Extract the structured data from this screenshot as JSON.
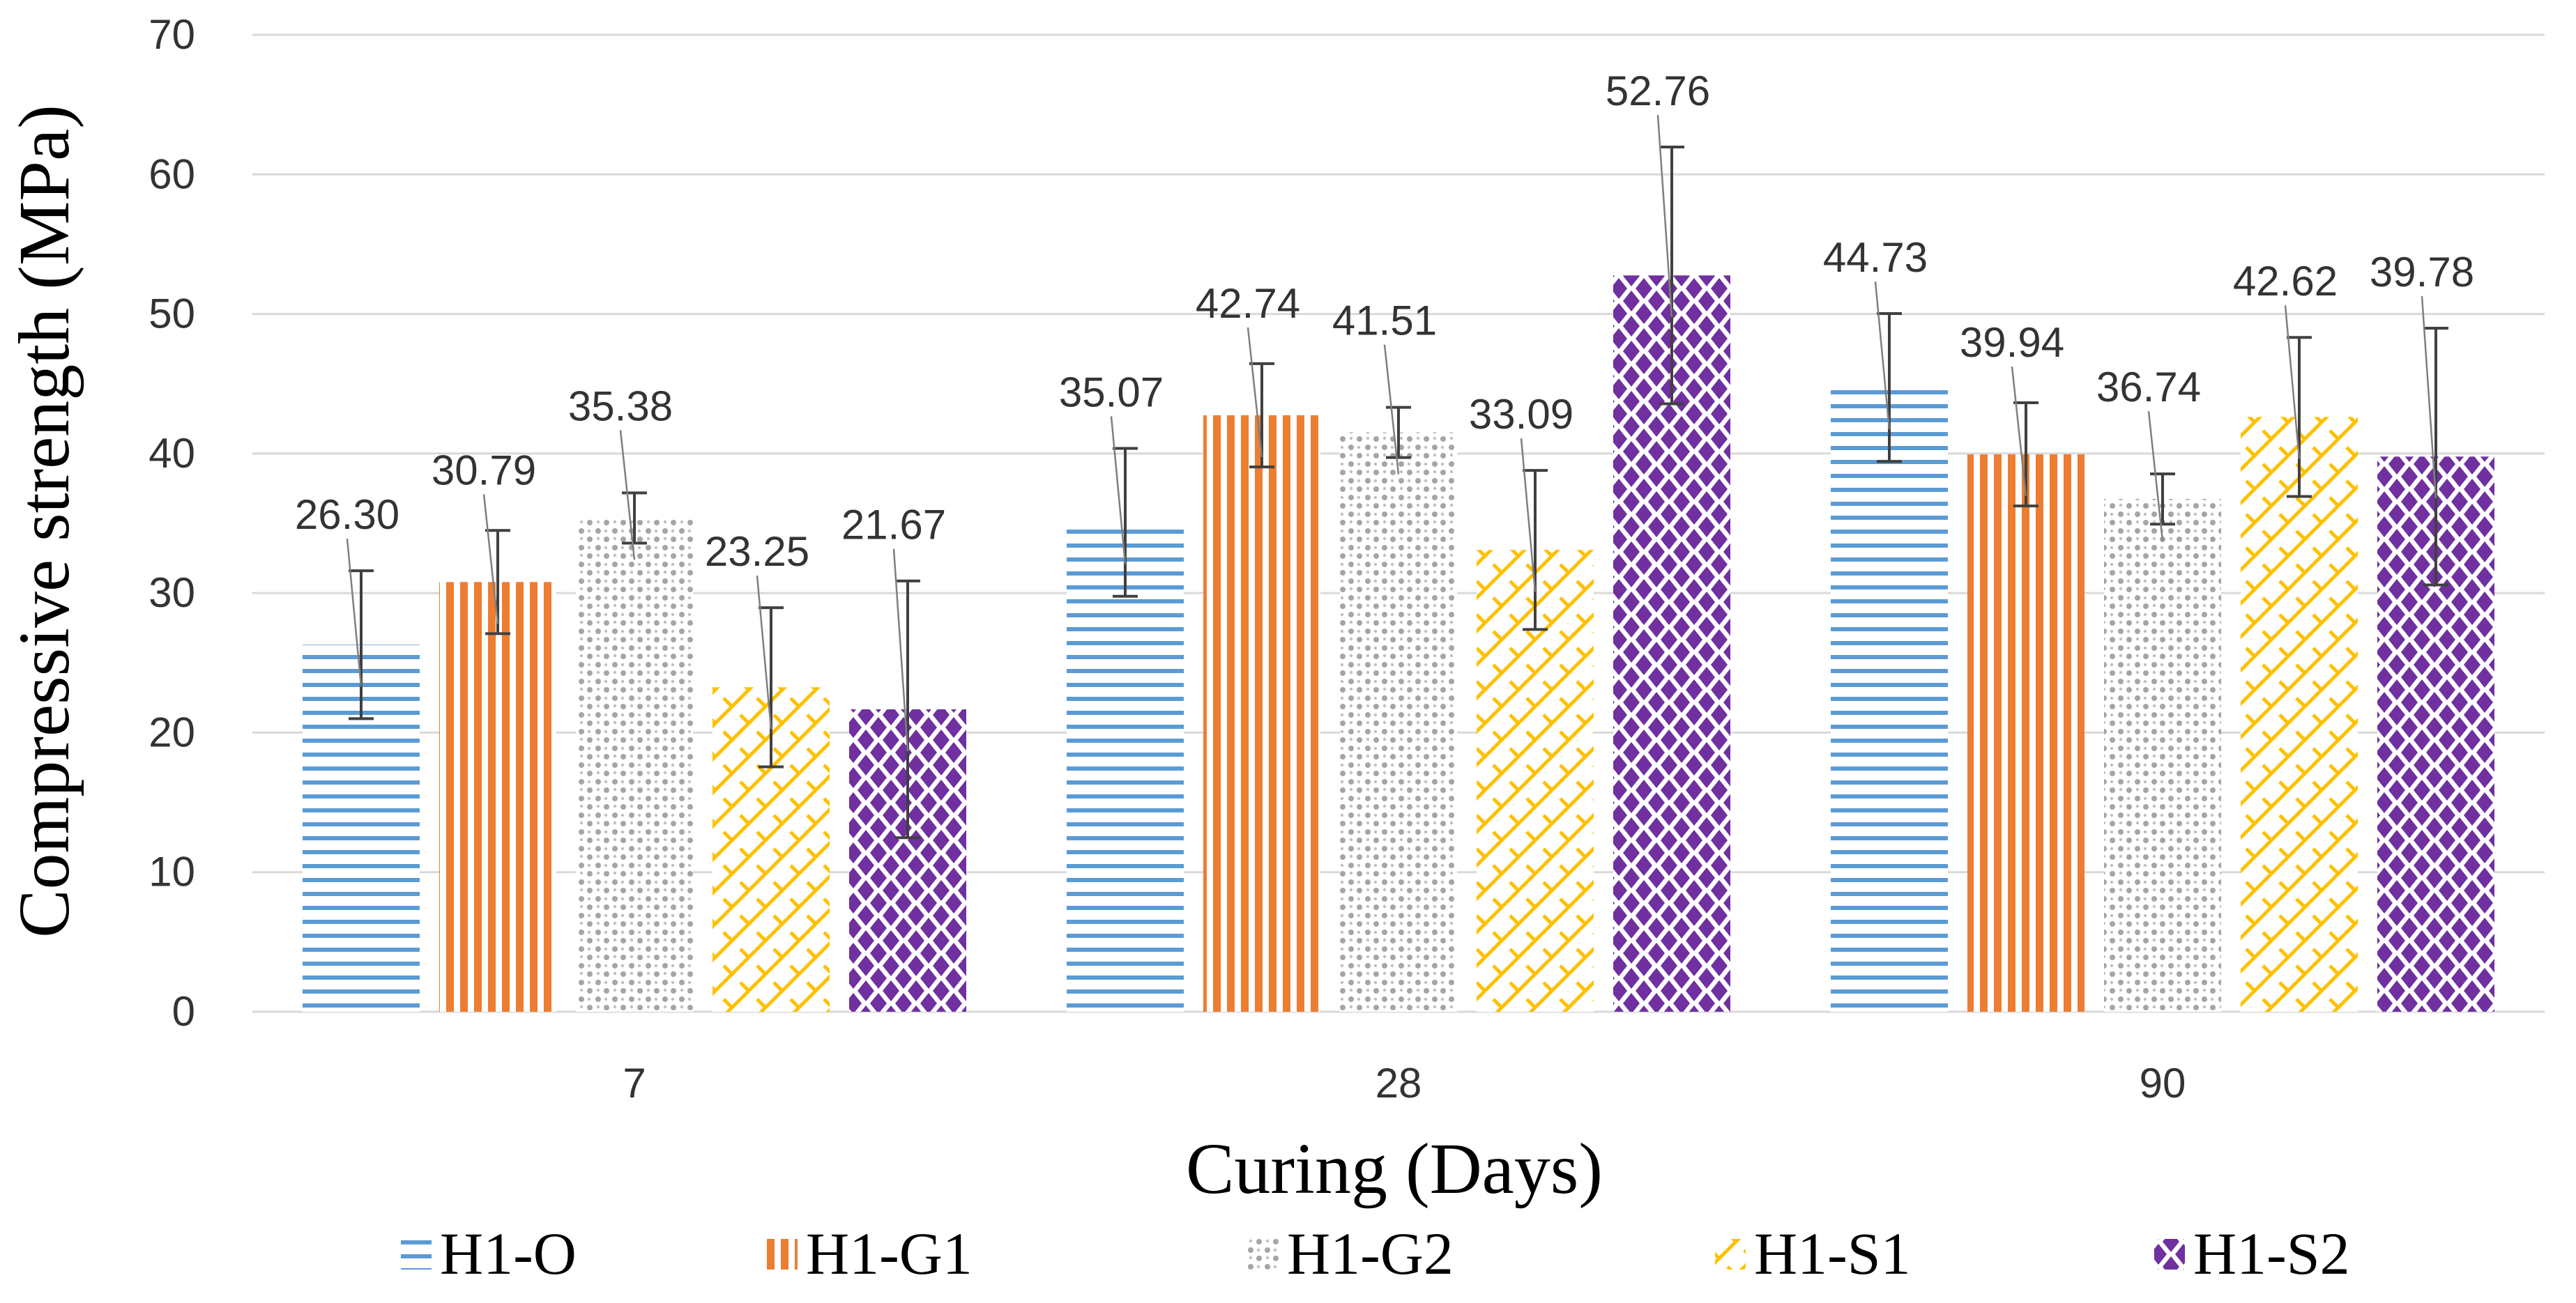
{
  "chart_data": {
    "type": "bar",
    "title": "",
    "xlabel": "Curing (Days)",
    "ylabel": "Compressive strength (MPa)",
    "ylim": [
      0,
      70
    ],
    "yticks": [
      "0",
      "10",
      "20",
      "30",
      "40",
      "50",
      "60",
      "70"
    ],
    "grid": true,
    "legend_position": "bottom",
    "categories": [
      "7",
      "28",
      "90"
    ],
    "series": [
      {
        "name": "H1-O",
        "color": "#5b9bd5",
        "pattern": "horizontal-lines",
        "values": [
          26.3,
          35.07,
          44.73
        ],
        "labels": [
          "26.30",
          "35.07",
          "44.73"
        ],
        "errors": [
          5.3,
          5.3,
          5.3
        ]
      },
      {
        "name": "H1-G1",
        "color": "#ed7d31",
        "pattern": "vertical-lines",
        "values": [
          30.79,
          42.74,
          39.94
        ],
        "labels": [
          "30.79",
          "42.74",
          "39.94"
        ],
        "errors": [
          3.7,
          3.7,
          3.7
        ]
      },
      {
        "name": "H1-G2",
        "color": "#a5a5a5",
        "pattern": "dots",
        "values": [
          35.38,
          41.51,
          36.74
        ],
        "labels": [
          "35.38",
          "41.51",
          "36.74"
        ],
        "errors": [
          1.8,
          1.8,
          1.8
        ]
      },
      {
        "name": "H1-S1",
        "color": "#ffc000",
        "pattern": "lattice",
        "values": [
          23.25,
          33.09,
          42.62
        ],
        "labels": [
          "23.25",
          "33.09",
          "42.62"
        ],
        "errors": [
          5.7,
          5.7,
          5.7
        ]
      },
      {
        "name": "H1-S2",
        "color": "#7030a0",
        "pattern": "diamonds",
        "values": [
          21.67,
          52.76,
          39.78
        ],
        "labels": [
          "21.67",
          "52.76",
          "39.78"
        ],
        "errors": [
          9.2,
          9.2,
          9.2
        ]
      }
    ]
  }
}
